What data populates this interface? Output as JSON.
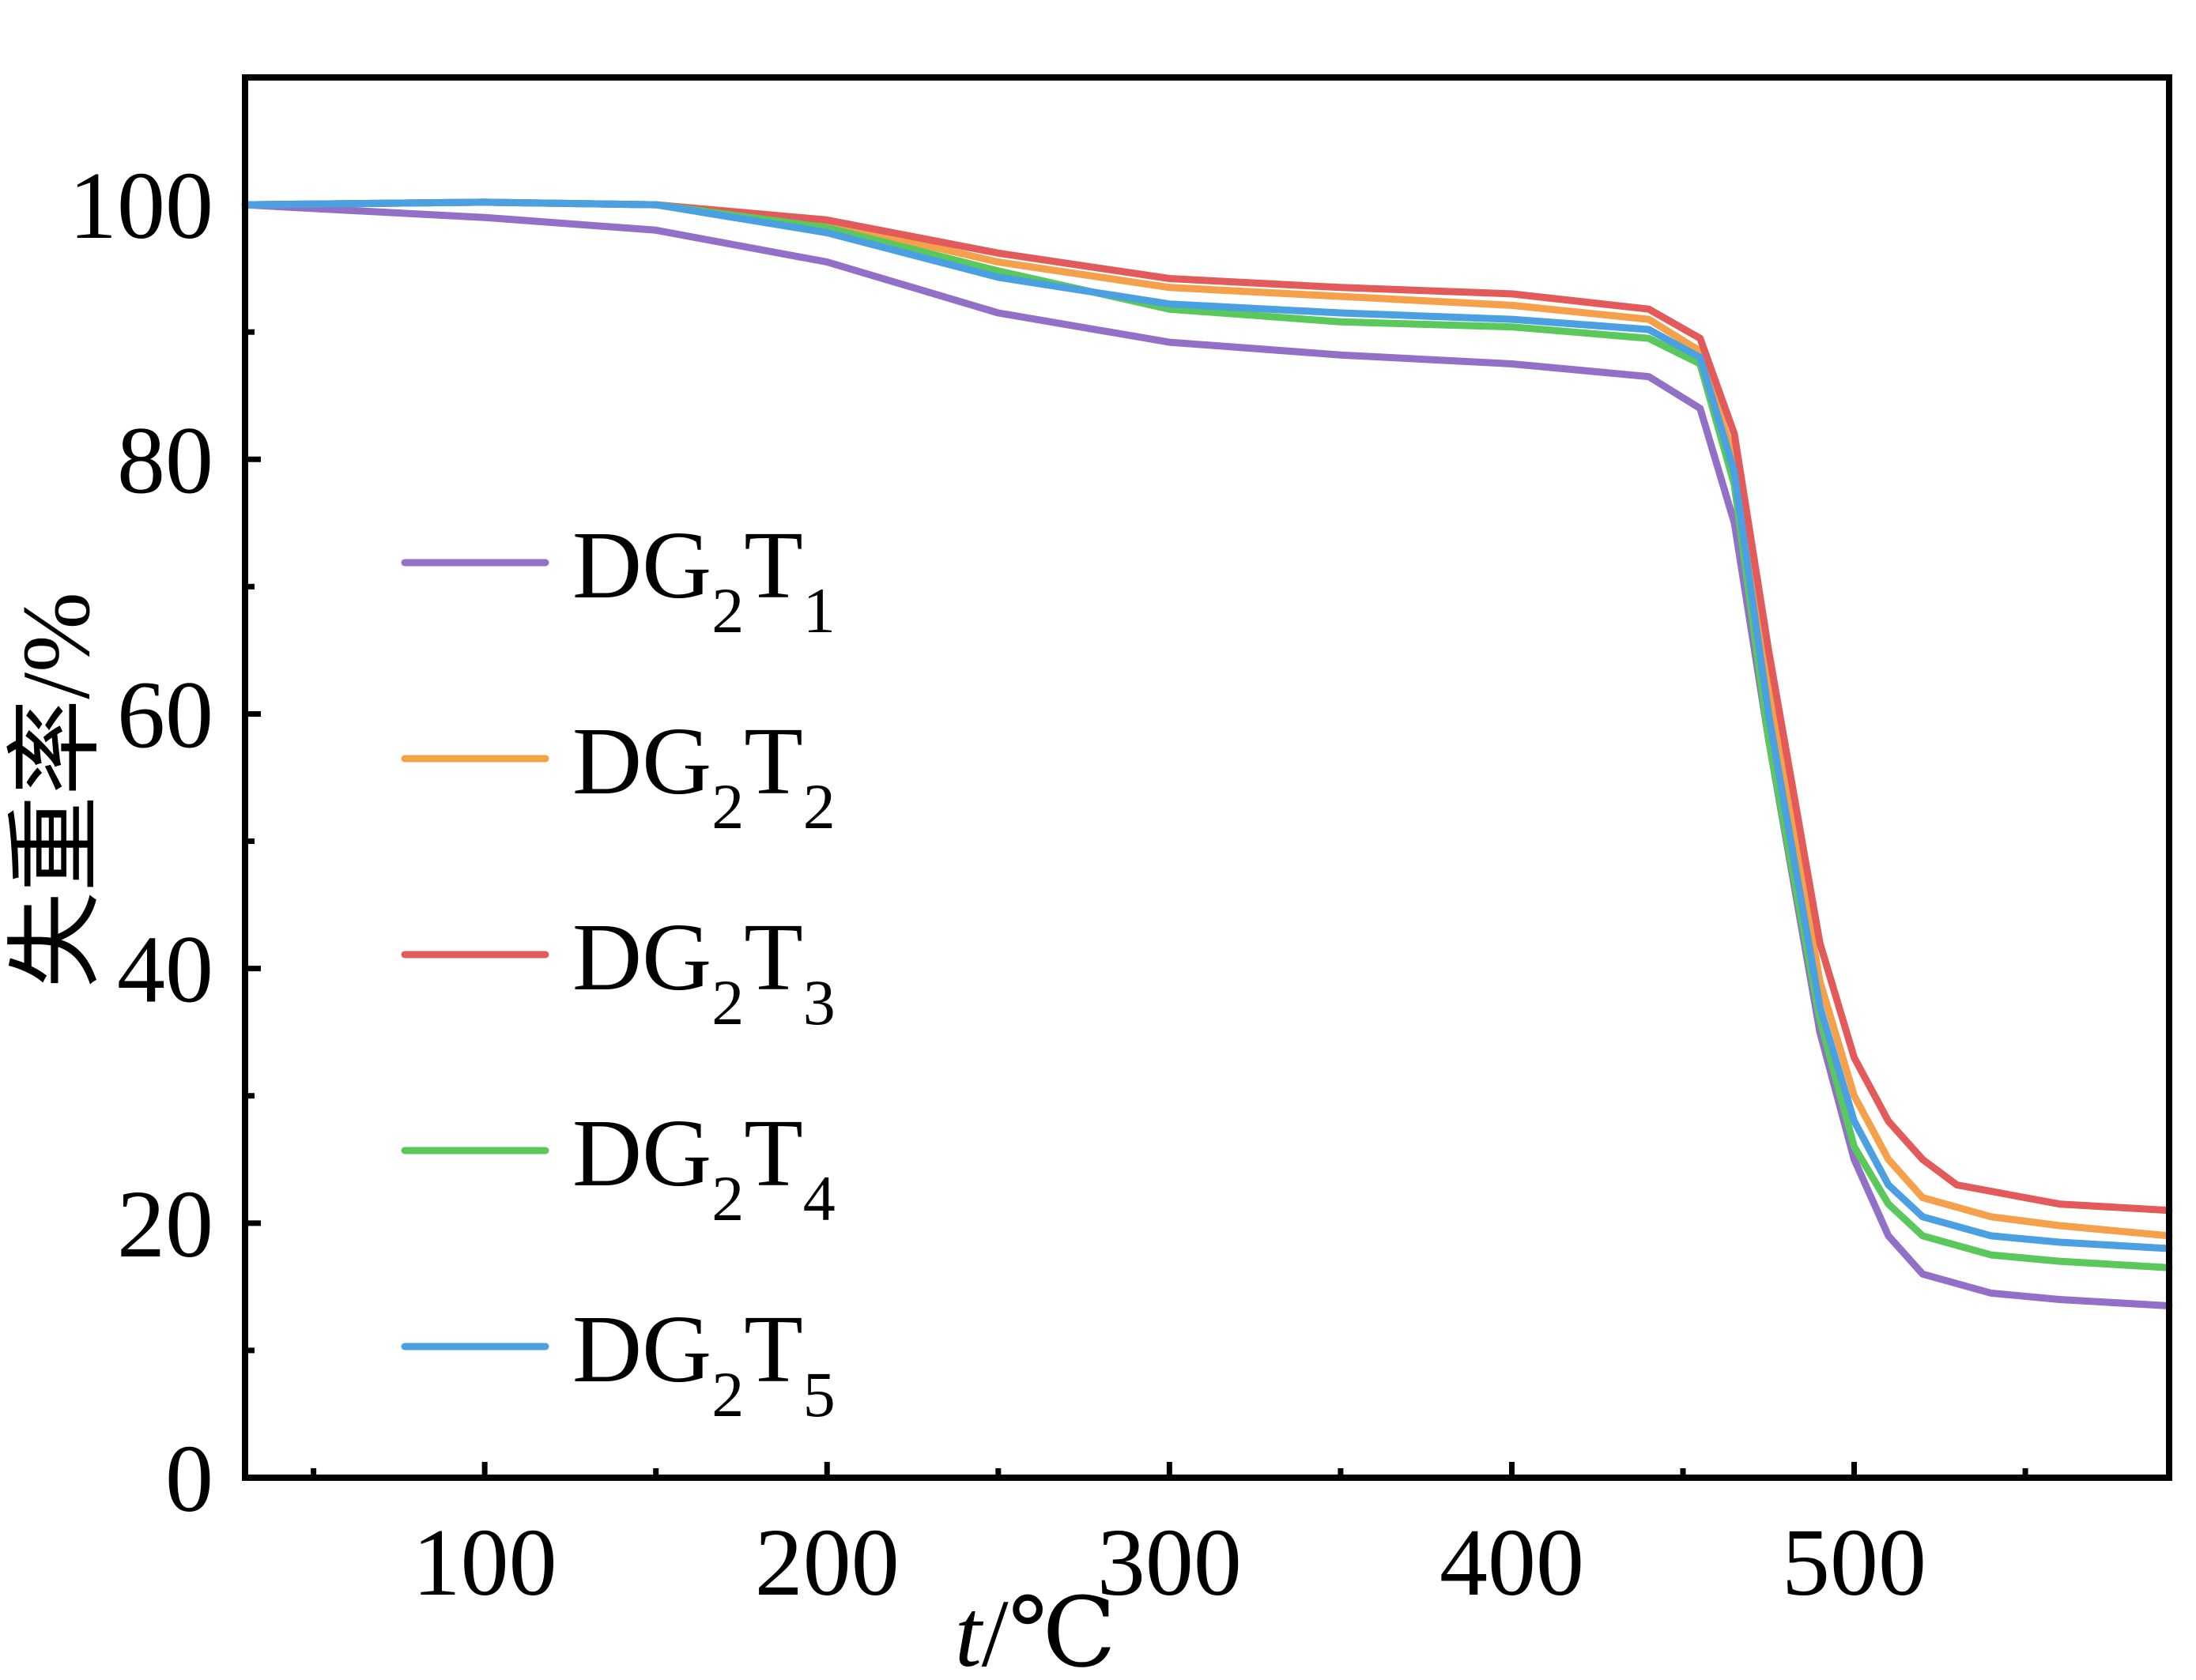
{
  "chart_data": {
    "type": "line",
    "xlabel": {
      "italic": "t",
      "rest": "/℃"
    },
    "ylabel": "失重率/%",
    "xlim": [
      30,
      592
    ],
    "ylim": [
      0,
      110
    ],
    "x_ticks": [
      100,
      200,
      300,
      400,
      500
    ],
    "x_tick_labels": [
      "100",
      "200",
      "300",
      "400",
      "500"
    ],
    "y_ticks": [
      0,
      20,
      40,
      60,
      80,
      100
    ],
    "y_tick_labels": [
      "0",
      "20",
      "40",
      "60",
      "80",
      "100"
    ],
    "grid": false,
    "legend_position": "left",
    "series": [
      {
        "name": "DG2T1",
        "label_main": "DG",
        "label_sub1": "2",
        "label_mid": "T",
        "label_sub2": "1",
        "color": "#9370c8",
        "points": [
          [
            30,
            100
          ],
          [
            50,
            99.7
          ],
          [
            100,
            99.0
          ],
          [
            150,
            98.0
          ],
          [
            200,
            95.5
          ],
          [
            250,
            91.5
          ],
          [
            300,
            89.2
          ],
          [
            350,
            88.2
          ],
          [
            400,
            87.5
          ],
          [
            440,
            86.5
          ],
          [
            455,
            84
          ],
          [
            465,
            75
          ],
          [
            475,
            58
          ],
          [
            490,
            35
          ],
          [
            500,
            25
          ],
          [
            510,
            19
          ],
          [
            520,
            16
          ],
          [
            540,
            14.5
          ],
          [
            560,
            14
          ],
          [
            592,
            13.5
          ]
        ]
      },
      {
        "name": "DG2T2",
        "label_main": "DG",
        "label_sub1": "2",
        "label_mid": "T",
        "label_sub2": "2",
        "color": "#f5a04a",
        "points": [
          [
            30,
            100
          ],
          [
            100,
            100.2
          ],
          [
            150,
            100
          ],
          [
            200,
            98.6
          ],
          [
            250,
            95.5
          ],
          [
            300,
            93.5
          ],
          [
            350,
            92.8
          ],
          [
            400,
            92.1
          ],
          [
            440,
            91.0
          ],
          [
            455,
            88.5
          ],
          [
            465,
            80
          ],
          [
            475,
            62
          ],
          [
            490,
            39
          ],
          [
            500,
            30
          ],
          [
            510,
            25
          ],
          [
            520,
            22
          ],
          [
            540,
            20.5
          ],
          [
            560,
            19.8
          ],
          [
            592,
            19
          ]
        ]
      },
      {
        "name": "DG2T3",
        "label_main": "DG",
        "label_sub1": "2",
        "label_mid": "T",
        "label_sub2": "3",
        "color": "#e35a5a",
        "points": [
          [
            30,
            100
          ],
          [
            100,
            100.2
          ],
          [
            150,
            100
          ],
          [
            200,
            98.8
          ],
          [
            250,
            96.2
          ],
          [
            300,
            94.2
          ],
          [
            350,
            93.5
          ],
          [
            400,
            93.0
          ],
          [
            440,
            91.8
          ],
          [
            455,
            89.5
          ],
          [
            465,
            82
          ],
          [
            475,
            65
          ],
          [
            490,
            42
          ],
          [
            500,
            33
          ],
          [
            510,
            28
          ],
          [
            520,
            25
          ],
          [
            530,
            23
          ],
          [
            560,
            21.5
          ],
          [
            592,
            21
          ]
        ]
      },
      {
        "name": "DG2T4",
        "label_main": "DG",
        "label_sub1": "2",
        "label_mid": "T",
        "label_sub2": "4",
        "color": "#5ac85a",
        "points": [
          [
            30,
            100
          ],
          [
            100,
            100.2
          ],
          [
            150,
            100
          ],
          [
            200,
            98.2
          ],
          [
            250,
            94.8
          ],
          [
            300,
            91.8
          ],
          [
            350,
            90.8
          ],
          [
            400,
            90.4
          ],
          [
            440,
            89.5
          ],
          [
            455,
            87.5
          ],
          [
            465,
            78
          ],
          [
            475,
            58
          ],
          [
            490,
            36
          ],
          [
            500,
            26
          ],
          [
            510,
            21.5
          ],
          [
            520,
            19
          ],
          [
            540,
            17.5
          ],
          [
            560,
            17
          ],
          [
            592,
            16.5
          ]
        ]
      },
      {
        "name": "DG2T5",
        "label_main": "DG",
        "label_sub1": "2",
        "label_mid": "T",
        "label_sub2": "5",
        "color": "#4aa0e0",
        "points": [
          [
            30,
            100
          ],
          [
            100,
            100.2
          ],
          [
            150,
            100
          ],
          [
            200,
            97.8
          ],
          [
            250,
            94.3
          ],
          [
            300,
            92.2
          ],
          [
            350,
            91.5
          ],
          [
            400,
            91.0
          ],
          [
            440,
            90.2
          ],
          [
            455,
            88
          ],
          [
            465,
            79
          ],
          [
            475,
            60
          ],
          [
            490,
            37
          ],
          [
            500,
            28
          ],
          [
            510,
            23
          ],
          [
            520,
            20.5
          ],
          [
            540,
            19
          ],
          [
            560,
            18.5
          ],
          [
            592,
            18
          ]
        ]
      }
    ]
  }
}
